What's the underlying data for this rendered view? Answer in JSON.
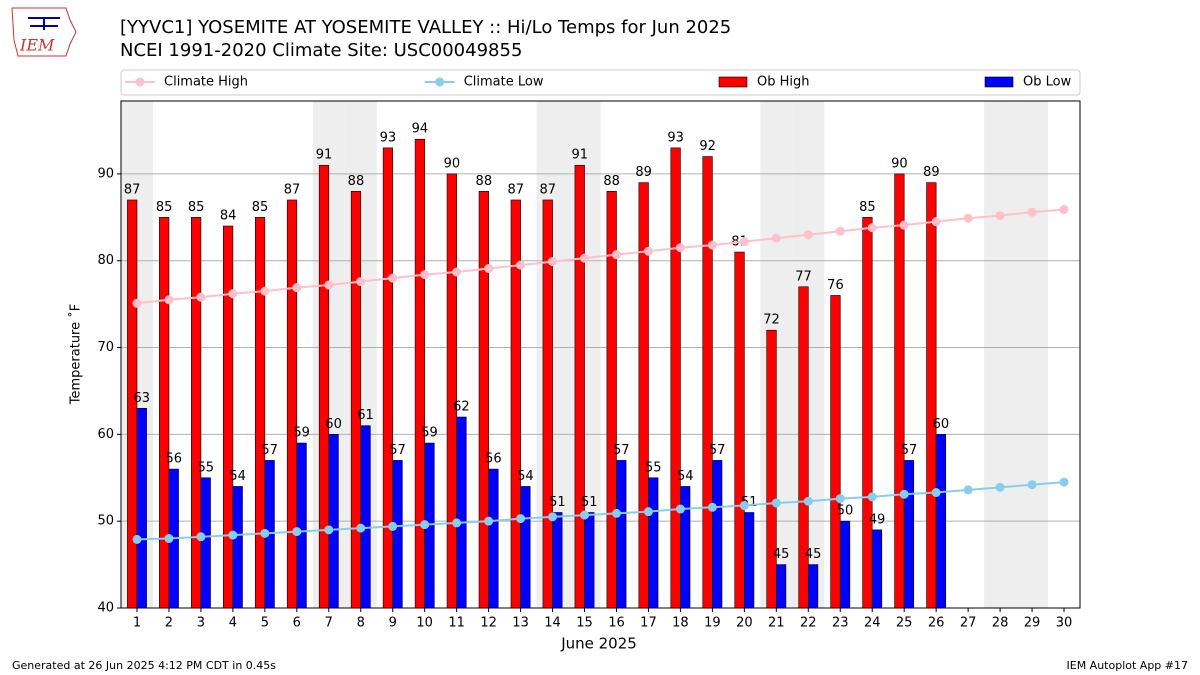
{
  "logo": {
    "text": "IEM"
  },
  "chart_data": {
    "type": "bar",
    "title": "[YYVC1] YOSEMITE AT YOSEMITE VALLEY :: Hi/Lo Temps for Jun 2025",
    "subtitle": "NCEI 1991-2020 Climate Site: USC00049855",
    "x_label": "June 2025",
    "y_label": "Temperature ˚F",
    "x": [
      1,
      2,
      3,
      4,
      5,
      6,
      7,
      8,
      9,
      10,
      11,
      12,
      13,
      14,
      15,
      16,
      17,
      18,
      19,
      20,
      21,
      22,
      23,
      24,
      25,
      26,
      27,
      28,
      29,
      30
    ],
    "xlim": [
      0.5,
      30.5
    ],
    "xticks": [
      1,
      2,
      3,
      4,
      5,
      6,
      7,
      8,
      9,
      10,
      11,
      12,
      13,
      14,
      15,
      16,
      17,
      18,
      19,
      20,
      21,
      22,
      23,
      24,
      25,
      26,
      27,
      28,
      29,
      30
    ],
    "ylim": [
      40,
      98.4
    ],
    "yticks": [
      40,
      50,
      60,
      70,
      80,
      90
    ],
    "grid": true,
    "legend": "top",
    "shaded_days": [
      1,
      7,
      8,
      14,
      15,
      21,
      22,
      28,
      29
    ],
    "series": [
      {
        "name": "Climate High",
        "type": "line",
        "color": "#ffc0cb",
        "values": [
          75.1,
          75.5,
          75.8,
          76.2,
          76.5,
          76.9,
          77.2,
          77.6,
          78.0,
          78.4,
          78.7,
          79.1,
          79.5,
          79.9,
          80.3,
          80.7,
          81.1,
          81.5,
          81.8,
          82.2,
          82.6,
          83.0,
          83.4,
          83.8,
          84.1,
          84.5,
          84.9,
          85.2,
          85.6,
          85.9
        ]
      },
      {
        "name": "Climate Low",
        "type": "line",
        "color": "#87ceeb",
        "values": [
          47.9,
          48.0,
          48.2,
          48.4,
          48.6,
          48.8,
          49.0,
          49.2,
          49.4,
          49.6,
          49.8,
          50.0,
          50.3,
          50.5,
          50.7,
          50.9,
          51.1,
          51.4,
          51.6,
          51.8,
          52.1,
          52.3,
          52.6,
          52.8,
          53.1,
          53.3,
          53.6,
          53.9,
          54.2,
          54.5
        ]
      },
      {
        "name": "Ob High",
        "type": "bar",
        "color": "#ff0000",
        "values": [
          87,
          85,
          85,
          84,
          85,
          87,
          91,
          88,
          93,
          94,
          90,
          88,
          87,
          87,
          91,
          88,
          89,
          93,
          92,
          81,
          72,
          77,
          76,
          85,
          90,
          89,
          null,
          null,
          null,
          null
        ]
      },
      {
        "name": "Ob Low",
        "type": "bar",
        "color": "#0000ff",
        "values": [
          63,
          56,
          55,
          54,
          57,
          59,
          60,
          61,
          57,
          59,
          62,
          56,
          54,
          51,
          51,
          57,
          55,
          54,
          57,
          51,
          45,
          45,
          50,
          49,
          57,
          60,
          null,
          null,
          null,
          null
        ]
      }
    ]
  },
  "footer": {
    "left": "Generated at 26 Jun 2025 4:12 PM CDT in 0.45s",
    "right": "IEM Autoplot App #17"
  }
}
